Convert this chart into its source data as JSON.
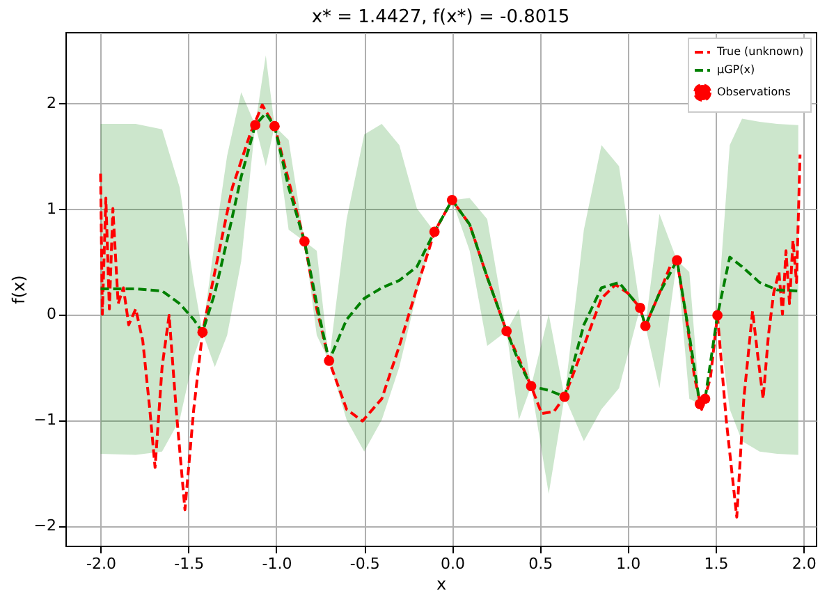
{
  "chart_data": {
    "type": "line",
    "title": "x* = 1.4427, f(x*) = -0.8015",
    "xlabel": "x",
    "ylabel": "f(x)",
    "xlim": [
      -2.2,
      2.07
    ],
    "ylim": [
      -2.19,
      2.67
    ],
    "xticks": [
      {
        "value": -2,
        "label": "-2.0"
      },
      {
        "value": -1.5,
        "label": "-1.5"
      },
      {
        "value": -1,
        "label": "-1.0"
      },
      {
        "value": -0.5,
        "label": "-0.5"
      },
      {
        "value": 0,
        "label": "0.0"
      },
      {
        "value": 0.5,
        "label": "0.5"
      },
      {
        "value": 1,
        "label": "1.0"
      },
      {
        "value": 1.5,
        "label": "1.5"
      },
      {
        "value": 2,
        "label": "2.0"
      }
    ],
    "yticks": [
      -2,
      -1,
      0,
      1,
      2
    ],
    "grid": true,
    "legend": "top right",
    "series": [
      {
        "name": "True (unknown)",
        "color": "#ff0000",
        "line_style": "dashed",
        "x": [
          -2.0,
          -1.99,
          -1.97,
          -1.95,
          -1.93,
          -1.9,
          -1.87,
          -1.84,
          -1.8,
          -1.76,
          -1.72,
          -1.69,
          -1.65,
          -1.61,
          -1.57,
          -1.52,
          -1.47,
          -1.42,
          -1.35,
          -1.25,
          -1.15,
          -1.08,
          -1.01,
          -0.92,
          -0.84,
          -0.77,
          -0.7,
          -0.6,
          -0.51,
          -0.4,
          -0.3,
          -0.2,
          -0.1,
          0.0,
          0.1,
          0.2,
          0.31,
          0.45,
          0.51,
          0.58,
          0.64,
          0.75,
          0.85,
          0.93,
          1.0,
          1.07,
          1.1,
          1.18,
          1.24,
          1.28,
          1.33,
          1.38,
          1.42,
          1.47,
          1.51,
          1.56,
          1.62,
          1.66,
          1.71,
          1.74,
          1.77,
          1.8,
          1.83,
          1.86,
          1.88,
          1.9,
          1.92,
          1.94,
          1.96,
          1.98
        ],
        "values": [
          1.33,
          0.0,
          1.1,
          0.05,
          1.0,
          0.1,
          0.25,
          -0.1,
          0.05,
          -0.25,
          -0.9,
          -1.45,
          -0.5,
          -0.01,
          -0.9,
          -1.85,
          -0.9,
          -0.17,
          0.4,
          1.2,
          1.7,
          1.98,
          1.78,
          1.2,
          0.69,
          0.05,
          -0.44,
          -0.9,
          -1.01,
          -0.8,
          -0.3,
          0.25,
          0.78,
          1.08,
          0.85,
          0.35,
          -0.16,
          -0.68,
          -0.94,
          -0.92,
          -0.78,
          -0.3,
          0.15,
          0.28,
          0.2,
          0.06,
          -0.11,
          0.2,
          0.45,
          0.5,
          0.0,
          -0.6,
          -0.9,
          -0.6,
          -0.01,
          -1.0,
          -1.92,
          -0.8,
          0.03,
          -0.4,
          -0.8,
          -0.2,
          0.2,
          0.4,
          0.0,
          0.6,
          0.1,
          0.7,
          0.3,
          1.51
        ]
      },
      {
        "name": "μGP(x)",
        "color": "#008000",
        "line_style": "dashed",
        "x": [
          -2.0,
          -1.8,
          -1.65,
          -1.55,
          -1.47,
          -1.42,
          -1.35,
          -1.28,
          -1.2,
          -1.12,
          -1.06,
          -1.01,
          -0.93,
          -0.84,
          -0.77,
          -0.7,
          -0.6,
          -0.5,
          -0.4,
          -0.3,
          -0.2,
          -0.1,
          0.0,
          0.1,
          0.2,
          0.31,
          0.38,
          0.45,
          0.55,
          0.64,
          0.75,
          0.85,
          0.95,
          1.07,
          1.1,
          1.18,
          1.28,
          1.35,
          1.41,
          1.44,
          1.51,
          1.58,
          1.65,
          1.75,
          1.85,
          1.97
        ],
        "values": [
          0.24,
          0.24,
          0.22,
          0.1,
          -0.05,
          -0.17,
          0.2,
          0.7,
          1.3,
          1.79,
          1.9,
          1.78,
          1.2,
          0.69,
          0.1,
          -0.44,
          -0.05,
          0.15,
          0.25,
          0.32,
          0.45,
          0.78,
          1.08,
          0.85,
          0.35,
          -0.16,
          -0.45,
          -0.68,
          -0.72,
          -0.78,
          -0.1,
          0.25,
          0.3,
          0.06,
          -0.11,
          0.2,
          0.51,
          -0.2,
          -0.85,
          -0.8,
          -0.01,
          0.54,
          0.45,
          0.3,
          0.23,
          0.22
        ],
        "lower": [
          -1.32,
          -1.33,
          -1.3,
          -1.0,
          -0.4,
          -0.17,
          -0.5,
          -0.2,
          0.5,
          1.79,
          1.4,
          1.78,
          0.8,
          0.69,
          -0.2,
          -0.44,
          -1.0,
          -1.3,
          -1.0,
          -0.5,
          0.2,
          0.78,
          1.08,
          0.6,
          -0.3,
          -0.16,
          -1.0,
          -0.68,
          -1.7,
          -0.78,
          -1.2,
          -0.9,
          -0.7,
          0.06,
          -0.11,
          -0.7,
          0.51,
          -0.8,
          -0.85,
          -0.8,
          -0.01,
          -0.9,
          -1.2,
          -1.3,
          -1.32,
          -1.33
        ],
        "upper": [
          1.8,
          1.8,
          1.75,
          1.2,
          0.3,
          -0.17,
          0.7,
          1.5,
          2.1,
          1.79,
          2.45,
          1.78,
          1.65,
          0.69,
          0.6,
          -0.44,
          0.9,
          1.7,
          1.8,
          1.6,
          1.0,
          0.78,
          1.08,
          1.1,
          0.9,
          -0.16,
          0.05,
          -0.68,
          0.0,
          -0.78,
          0.8,
          1.6,
          1.4,
          0.06,
          -0.11,
          0.95,
          0.51,
          0.4,
          -0.85,
          -0.8,
          -0.01,
          1.6,
          1.85,
          1.82,
          1.8,
          1.79
        ]
      },
      {
        "name": "Observations",
        "type": "scatter",
        "color": "#ff0000",
        "marker": "circle",
        "x": [
          -1.42,
          -1.12,
          -1.01,
          -0.84,
          -0.7,
          -0.1,
          0.0,
          0.31,
          0.45,
          0.64,
          1.07,
          1.1,
          1.28,
          1.41,
          1.44,
          1.51
        ],
        "values": [
          -0.17,
          1.79,
          1.78,
          0.69,
          -0.44,
          0.78,
          1.08,
          -0.16,
          -0.68,
          -0.78,
          0.06,
          -0.11,
          0.51,
          -0.85,
          -0.8,
          -0.01
        ]
      }
    ]
  }
}
